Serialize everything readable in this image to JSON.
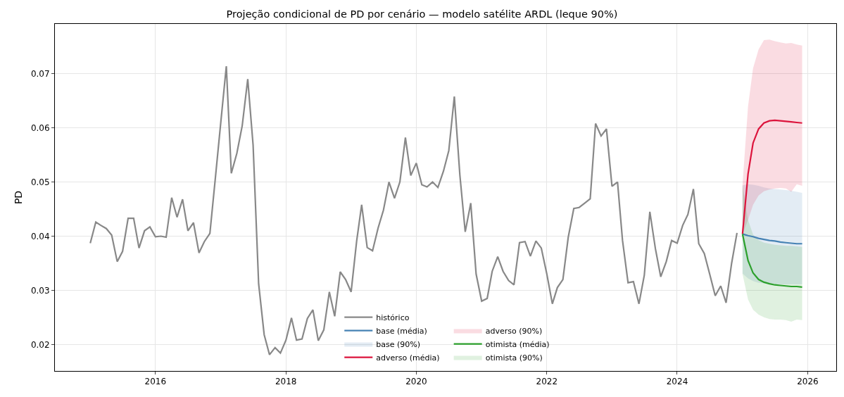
{
  "chart_data": {
    "type": "line",
    "title": "Projeção condicional de PD por cenário — modelo satélite ARDL (leque 90%)",
    "ylabel": "PD",
    "xlim": [
      "2014-06-17",
      "2026-06-10"
    ],
    "xticks": [
      {
        "value": "2016-01-01",
        "label": "2016"
      },
      {
        "value": "2018-01-01",
        "label": "2018"
      },
      {
        "value": "2020-01-01",
        "label": "2020"
      },
      {
        "value": "2022-01-01",
        "label": "2022"
      },
      {
        "value": "2024-01-01",
        "label": "2024"
      },
      {
        "value": "2026-01-01",
        "label": "2026"
      }
    ],
    "ylim": [
      0.0151,
      0.0792
    ],
    "yticks": [
      0.02,
      0.03,
      0.04,
      0.05,
      0.06,
      0.07
    ],
    "grid": true,
    "legend": "bottom",
    "marker": "none",
    "line_style": "solid",
    "series": [
      {
        "name": "histórico",
        "color": "#888888",
        "x": [
          "2015-01",
          "2015-02",
          "2015-03",
          "2015-04",
          "2015-05",
          "2015-06",
          "2015-07",
          "2015-08",
          "2015-09",
          "2015-10",
          "2015-11",
          "2015-12",
          "2016-01",
          "2016-02",
          "2016-03",
          "2016-04",
          "2016-05",
          "2016-06",
          "2016-07",
          "2016-08",
          "2016-09",
          "2016-10",
          "2016-11",
          "2016-12",
          "2017-01",
          "2017-02",
          "2017-03",
          "2017-04",
          "2017-05",
          "2017-06",
          "2017-07",
          "2017-08",
          "2017-09",
          "2017-10",
          "2017-11",
          "2017-12",
          "2018-01",
          "2018-02",
          "2018-03",
          "2018-04",
          "2018-05",
          "2018-06",
          "2018-07",
          "2018-08",
          "2018-09",
          "2018-10",
          "2018-11",
          "2018-12",
          "2019-01",
          "2019-02",
          "2019-03",
          "2019-04",
          "2019-05",
          "2019-06",
          "2019-07",
          "2019-08",
          "2019-09",
          "2019-10",
          "2019-11",
          "2019-12",
          "2020-01",
          "2020-02",
          "2020-03",
          "2020-04",
          "2020-05",
          "2020-06",
          "2020-07",
          "2020-08",
          "2020-09",
          "2020-10",
          "2020-11",
          "2020-12",
          "2021-01",
          "2021-02",
          "2021-03",
          "2021-04",
          "2021-05",
          "2021-06",
          "2021-07",
          "2021-08",
          "2021-09",
          "2021-10",
          "2021-11",
          "2021-12",
          "2022-01",
          "2022-02",
          "2022-03",
          "2022-04",
          "2022-05",
          "2022-06",
          "2022-07",
          "2022-08",
          "2022-09",
          "2022-10",
          "2022-11",
          "2022-12",
          "2023-01",
          "2023-02",
          "2023-03",
          "2023-04",
          "2023-05",
          "2023-06",
          "2023-07",
          "2023-08",
          "2023-09",
          "2023-10",
          "2023-11",
          "2023-12",
          "2024-01",
          "2024-02",
          "2024-03",
          "2024-04",
          "2024-05",
          "2024-06",
          "2024-07",
          "2024-08",
          "2024-09",
          "2024-10",
          "2024-11",
          "2024-12"
        ],
        "values": [
          0.0387,
          0.0426,
          0.042,
          0.0414,
          0.0402,
          0.0353,
          0.0372,
          0.0433,
          0.0433,
          0.0378,
          0.041,
          0.0417,
          0.0399,
          0.04,
          0.0398,
          0.0471,
          0.0435,
          0.0468,
          0.041,
          0.0425,
          0.0369,
          0.039,
          0.0405,
          0.0505,
          0.061,
          0.0714,
          0.0516,
          0.0553,
          0.0604,
          0.069,
          0.0568,
          0.0312,
          0.0218,
          0.0181,
          0.0194,
          0.0184,
          0.0208,
          0.0249,
          0.0208,
          0.021,
          0.0248,
          0.0264,
          0.0207,
          0.0227,
          0.0297,
          0.0252,
          0.0334,
          0.032,
          0.0297,
          0.0391,
          0.0458,
          0.0379,
          0.0373,
          0.0415,
          0.0448,
          0.05,
          0.047,
          0.05,
          0.0582,
          0.0512,
          0.0535,
          0.0495,
          0.0491,
          0.05,
          0.049,
          0.052,
          0.0558,
          0.0658,
          0.0513,
          0.0408,
          0.0461,
          0.033,
          0.028,
          0.0285,
          0.0335,
          0.0362,
          0.0335,
          0.0318,
          0.031,
          0.0388,
          0.039,
          0.0363,
          0.0391,
          0.0378,
          0.033,
          0.0275,
          0.0305,
          0.032,
          0.0398,
          0.0451,
          0.0453,
          0.0461,
          0.0469,
          0.0608,
          0.0585,
          0.0598,
          0.0492,
          0.05,
          0.0392,
          0.0314,
          0.0316,
          0.0275,
          0.0328,
          0.0445,
          0.0377,
          0.0325,
          0.0353,
          0.0392,
          0.0387,
          0.042,
          0.044,
          0.0487,
          0.0386,
          0.0368,
          0.033,
          0.029,
          0.0308,
          0.0277,
          0.035,
          0.0406
        ]
      },
      {
        "name": "base (média)",
        "color": "#4682b4",
        "x": [
          "2025-01",
          "2025-02",
          "2025-03",
          "2025-04",
          "2025-05",
          "2025-06",
          "2025-07",
          "2025-08",
          "2025-09",
          "2025-10",
          "2025-11",
          "2025-12"
        ],
        "values": [
          0.0404,
          0.0401,
          0.0399,
          0.0396,
          0.0394,
          0.0392,
          0.0391,
          0.0389,
          0.0388,
          0.0387,
          0.0386,
          0.0386
        ]
      },
      {
        "name": "base (90%)",
        "color": "#4682b4",
        "x": [
          "2025-01",
          "2025-02",
          "2025-03",
          "2025-04",
          "2025-05",
          "2025-06",
          "2025-07",
          "2025-08",
          "2025-09",
          "2025-10",
          "2025-11",
          "2025-12"
        ],
        "values": [
          null,
          null,
          null,
          null,
          null,
          null,
          null,
          null,
          null,
          null,
          null,
          null
        ],
        "lower": [
          0.0331,
          0.0322,
          0.0317,
          0.0314,
          0.0313,
          0.0312,
          0.0312,
          0.0311,
          0.0311,
          0.0311,
          0.0311,
          0.0311
        ],
        "upper": [
          0.0494,
          0.0496,
          0.0495,
          0.0493,
          0.049,
          0.0488,
          0.0487,
          0.0486,
          0.0485,
          0.0484,
          0.0482,
          0.048
        ]
      },
      {
        "name": "adverso (média)",
        "color": "#dc143c",
        "x": [
          "2025-01",
          "2025-02",
          "2025-03",
          "2025-04",
          "2025-05",
          "2025-06",
          "2025-07",
          "2025-08",
          "2025-09",
          "2025-10",
          "2025-11",
          "2025-12"
        ],
        "values": [
          0.0404,
          0.0515,
          0.0572,
          0.0598,
          0.0609,
          0.0613,
          0.0614,
          0.0613,
          0.0612,
          0.0611,
          0.061,
          0.0609
        ]
      },
      {
        "name": "adverso (90%)",
        "color": "#dc143c",
        "x": [
          "2025-01",
          "2025-02",
          "2025-03",
          "2025-04",
          "2025-05",
          "2025-06",
          "2025-07",
          "2025-08",
          "2025-09",
          "2025-10",
          "2025-11",
          "2025-12"
        ],
        "values": [
          null,
          null,
          null,
          null,
          null,
          null,
          null,
          null,
          null,
          null,
          null,
          null
        ],
        "lower": [
          0.0404,
          0.043,
          0.0458,
          0.0475,
          0.0483,
          0.0486,
          0.0488,
          0.0489,
          0.0488,
          0.0482,
          0.0496,
          0.0493
        ],
        "upper": [
          0.0495,
          0.064,
          0.071,
          0.0745,
          0.0762,
          0.0763,
          0.076,
          0.0758,
          0.0756,
          0.0757,
          0.0754,
          0.0752
        ]
      },
      {
        "name": "otimista (média)",
        "color": "#2ca02c",
        "x": [
          "2025-01",
          "2025-02",
          "2025-03",
          "2025-04",
          "2025-05",
          "2025-06",
          "2025-07",
          "2025-08",
          "2025-09",
          "2025-10",
          "2025-11",
          "2025-12"
        ],
        "values": [
          0.0404,
          0.0355,
          0.0332,
          0.032,
          0.0315,
          0.0312,
          0.031,
          0.0309,
          0.0308,
          0.0307,
          0.0307,
          0.0306
        ]
      },
      {
        "name": "otimista (90%)",
        "color": "#2ca02c",
        "x": [
          "2025-01",
          "2025-02",
          "2025-03",
          "2025-04",
          "2025-05",
          "2025-06",
          "2025-07",
          "2025-08",
          "2025-09",
          "2025-10",
          "2025-11",
          "2025-12"
        ],
        "values": [
          null,
          null,
          null,
          null,
          null,
          null,
          null,
          null,
          null,
          null,
          null,
          null
        ],
        "lower": [
          0.033,
          0.0283,
          0.0264,
          0.0255,
          0.025,
          0.0247,
          0.0246,
          0.0246,
          0.0245,
          0.0242,
          0.0246,
          0.0245
        ],
        "upper": [
          0.0494,
          0.043,
          0.0403,
          0.0393,
          0.0388,
          0.0386,
          0.0384,
          0.0383,
          0.0382,
          0.0382,
          0.0381,
          0.038
        ]
      }
    ]
  }
}
